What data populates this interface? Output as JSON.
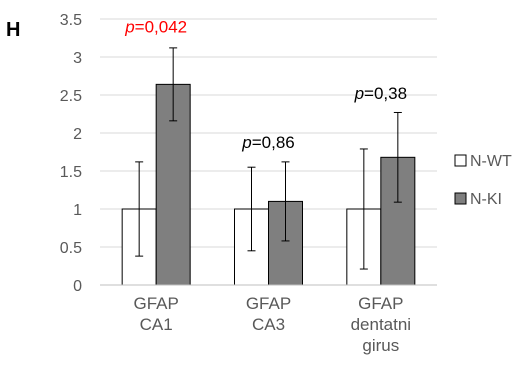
{
  "panel_label": "H",
  "colors": {
    "axis_text": "#595959",
    "gridline": "#d9d9d9",
    "bar_outline": "#000000",
    "significant": "#ff0000",
    "normal": "#000000"
  },
  "chart_data": {
    "type": "bar",
    "categories": [
      [
        "GFAP",
        "CA1"
      ],
      [
        "GFAP",
        "CA3"
      ],
      [
        "GFAP",
        "dentatni",
        "girus"
      ]
    ],
    "ylim": [
      0,
      3.5
    ],
    "yticks": [
      "0",
      "0.5",
      "1",
      "1.5",
      "2",
      "2.5",
      "3",
      "3.5"
    ],
    "grid": true,
    "legend_position": "right",
    "series": [
      {
        "name": "N-WT",
        "color": "#ffffff",
        "values": [
          1,
          1,
          1
        ],
        "error": [
          0.62,
          0.55,
          0.79
        ]
      },
      {
        "name": "N-KI",
        "color": "#7f7f7f",
        "values": [
          2.64,
          1.1,
          1.68
        ],
        "error": [
          0.48,
          0.52,
          0.59
        ]
      }
    ],
    "annotations": [
      {
        "prefix": "p",
        "text": "=0,042",
        "significant": true,
        "category": 0,
        "y": 3.32
      },
      {
        "prefix": "p",
        "text": "=0,86",
        "significant": false,
        "category": 1,
        "y": 1.8
      },
      {
        "prefix": "p",
        "text": "=0,38",
        "significant": false,
        "category": 2,
        "y": 2.45
      }
    ]
  }
}
